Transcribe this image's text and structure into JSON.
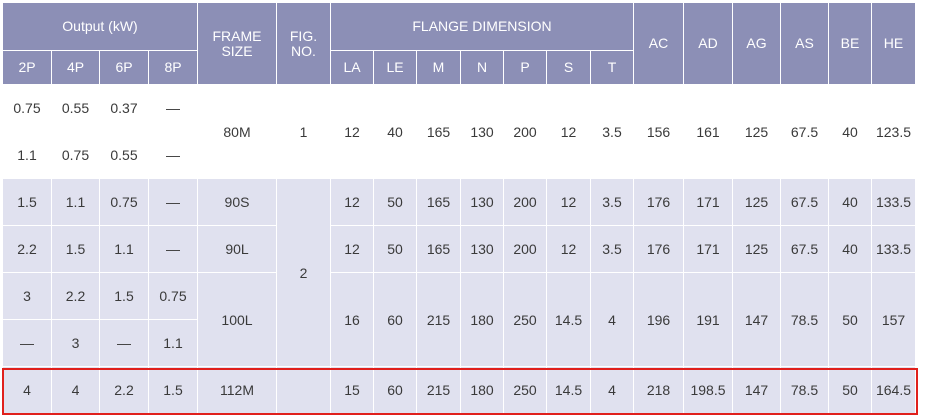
{
  "header": {
    "output": "Output (kW)",
    "frame_size": [
      "FRAME",
      "SIZE"
    ],
    "fig_no": [
      "FIG.",
      "NO."
    ],
    "flange": "FLANGE DIMENSION",
    "AC": "AC",
    "AD": "AD",
    "AG": "AG",
    "AS": "AS",
    "BE": "BE",
    "HE": "HE",
    "p2": "2P",
    "p4": "4P",
    "p6": "6P",
    "p8": "8P",
    "LA": "LA",
    "LE": "LE",
    "M": "M",
    "N": "N",
    "P": "P",
    "S": "S",
    "T": "T"
  },
  "output_rows": [
    [
      "0.75",
      "0.55",
      "0.37",
      "—"
    ],
    [
      "1.1",
      "0.75",
      "0.55",
      "—"
    ],
    [
      "1.5",
      "1.1",
      "0.75",
      "—"
    ],
    [
      "2.2",
      "1.5",
      "1.1",
      "—"
    ],
    [
      "3",
      "2.2",
      "1.5",
      "0.75"
    ],
    [
      "—",
      "3",
      "—",
      "1.1"
    ],
    [
      "4",
      "4",
      "2.2",
      "1.5"
    ]
  ],
  "frames": [
    "80M",
    "90S",
    "90L",
    "100L",
    "112M"
  ],
  "figs": [
    "1",
    "2"
  ],
  "dims": [
    [
      "12",
      "40",
      "165",
      "130",
      "200",
      "12",
      "3.5",
      "156",
      "161",
      "125",
      "67.5",
      "40",
      "123.5"
    ],
    [
      "12",
      "50",
      "165",
      "130",
      "200",
      "12",
      "3.5",
      "176",
      "171",
      "125",
      "67.5",
      "40",
      "133.5"
    ],
    [
      "12",
      "50",
      "165",
      "130",
      "200",
      "12",
      "3.5",
      "176",
      "171",
      "125",
      "67.5",
      "40",
      "133.5"
    ],
    [
      "16",
      "60",
      "215",
      "180",
      "250",
      "14.5",
      "4",
      "196",
      "191",
      "147",
      "78.5",
      "50",
      "157"
    ],
    [
      "15",
      "60",
      "215",
      "180",
      "250",
      "14.5",
      "4",
      "218",
      "198.5",
      "147",
      "78.5",
      "50",
      "164.5"
    ]
  ],
  "colors": {
    "header_bg": "#8c8fb6",
    "stripe_bg": "#e0e1ef",
    "highlight": "#e0201c"
  }
}
